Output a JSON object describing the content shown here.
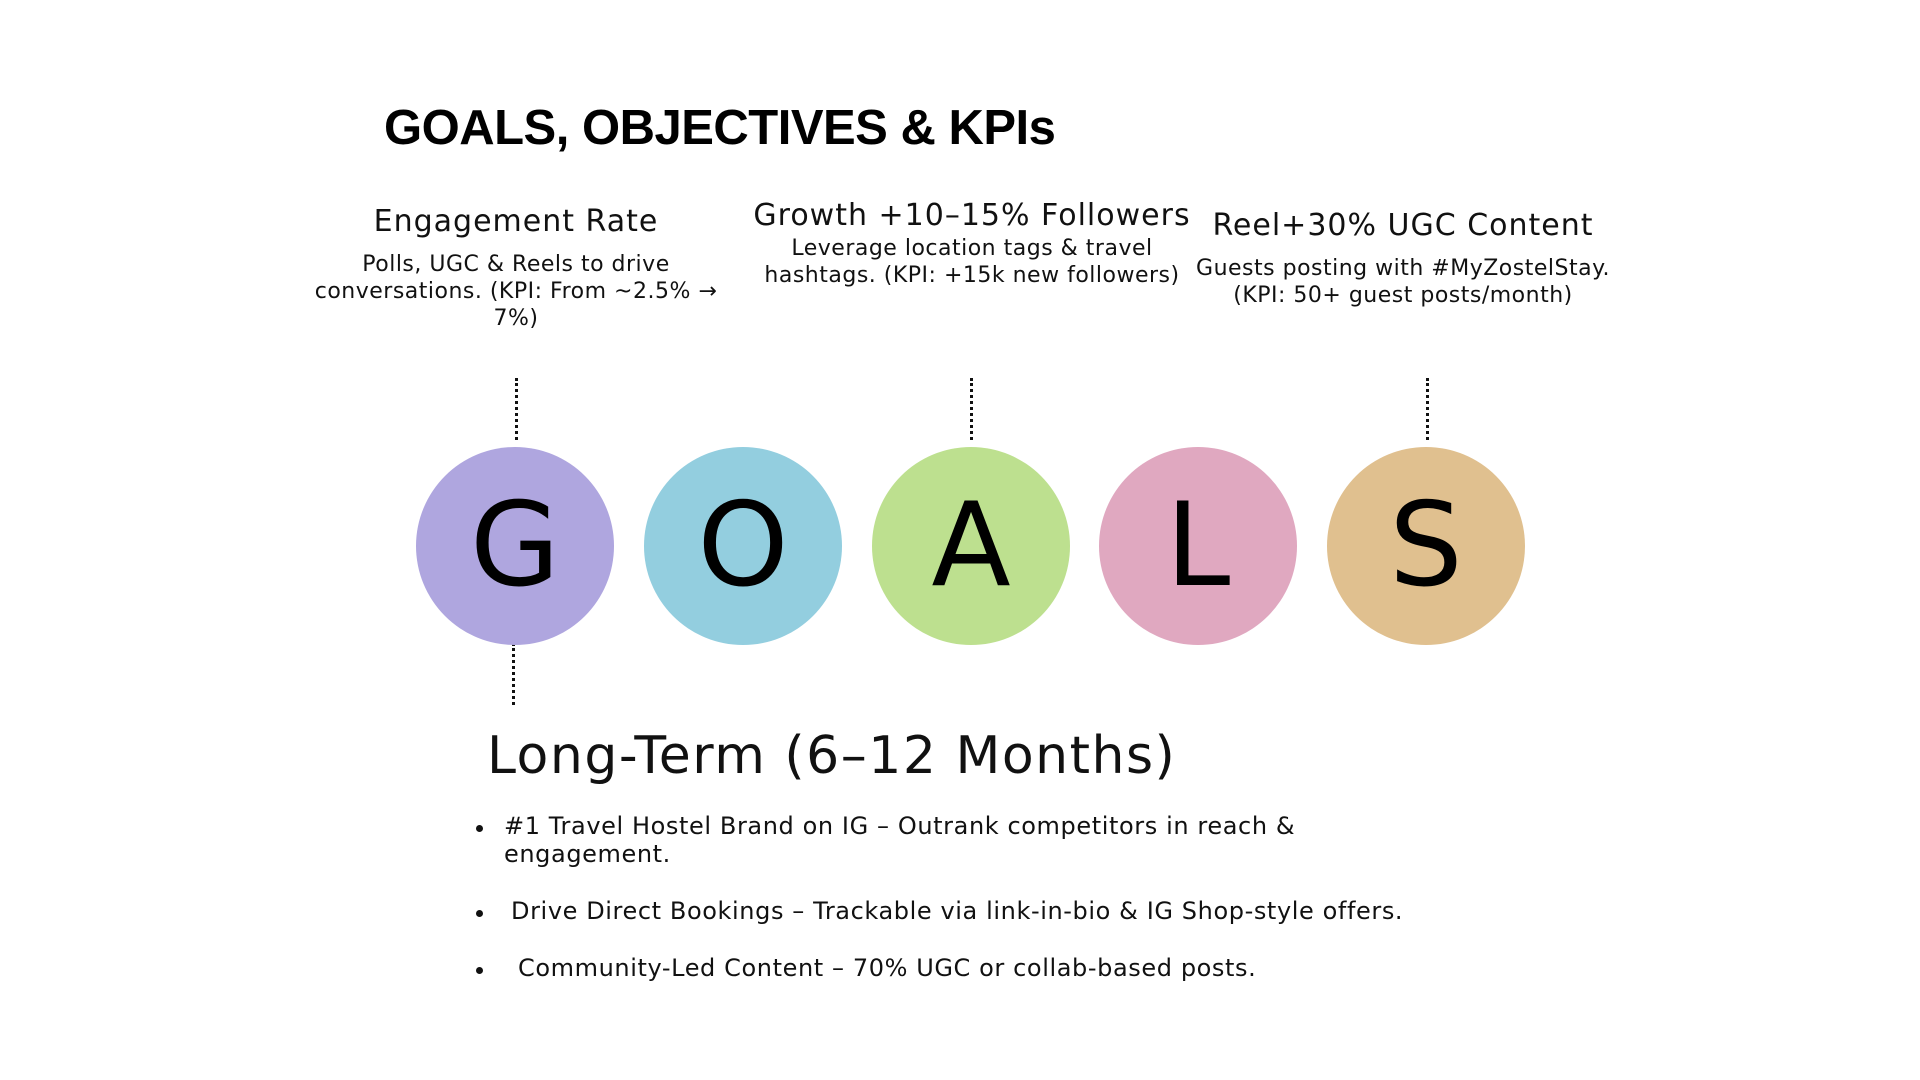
{
  "title": "GOALS, OBJECTIVES & KPIs",
  "goals": [
    {
      "heading": "Engagement Rate",
      "description": "Polls, UGC & Reels to drive conversations. (KPI: From ~2.5% → 7%)"
    },
    {
      "heading": "Growth +10–15% Followers",
      "description": "Leverage location tags & travel hashtags. (KPI: +15k new followers)"
    },
    {
      "heading": "Reel+30% UGC Content",
      "description": "Guests posting with #MyZostelStay. (KPI: 50+ guest posts/month)"
    }
  ],
  "letters": [
    {
      "char": "G",
      "color": "#AFA6DF"
    },
    {
      "char": "O",
      "color": "#93CEDF"
    },
    {
      "char": "A",
      "color": "#BDE08F"
    },
    {
      "char": "L",
      "color": "#E0A8C0"
    },
    {
      "char": "S",
      "color": "#E0C08F"
    }
  ],
  "long_term": {
    "title": "Long-Term (6–12 Months)",
    "items": [
      "#1 Travel Hostel Brand on IG – Outrank competitors in reach & engagement.",
      "Drive Direct Bookings – Trackable via link-in-bio & IG Shop-style offers.",
      "Community-Led Content – 70% UGC or collab-based posts."
    ]
  }
}
